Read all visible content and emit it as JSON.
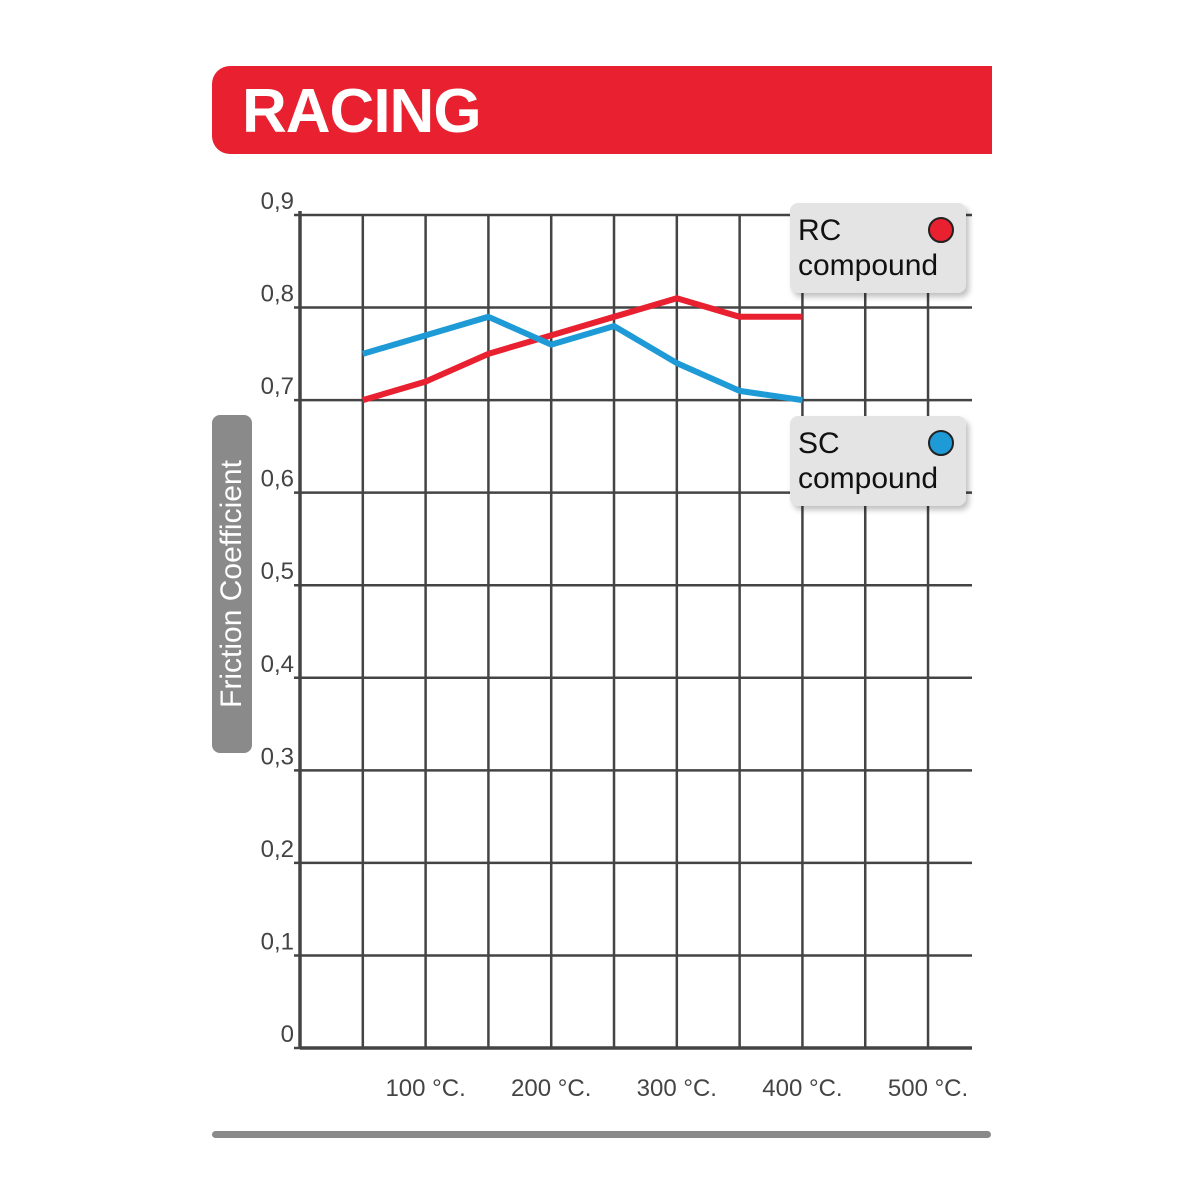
{
  "chart_data": {
    "type": "line",
    "title": "RACING",
    "y_label": "Friction Coefficient",
    "x": [
      50,
      100,
      150,
      200,
      250,
      300,
      350,
      400
    ],
    "series": [
      {
        "name": "RC compound",
        "color": "#e8202f",
        "values": [
          0.7,
          0.72,
          0.75,
          0.77,
          0.79,
          0.81,
          0.79,
          0.79
        ]
      },
      {
        "name": "SC compound",
        "color": "#1e9ad6",
        "values": [
          0.75,
          0.77,
          0.79,
          0.76,
          0.78,
          0.74,
          0.71,
          0.7
        ]
      }
    ],
    "xlim": [
      0,
      535
    ],
    "xticks": [
      {
        "value": 100,
        "label": "100 °C."
      },
      {
        "value": 200,
        "label": "200 °C."
      },
      {
        "value": 300,
        "label": "300 °C."
      },
      {
        "value": 400,
        "label": "400 °C."
      },
      {
        "value": 500,
        "label": "500 °C."
      }
    ],
    "x_minor_grid": [
      50,
      150,
      250,
      350,
      450
    ],
    "ylim": [
      0,
      0.9
    ],
    "yticks": [
      {
        "value": 0,
        "label": "0"
      },
      {
        "value": 0.1,
        "label": "0,1"
      },
      {
        "value": 0.2,
        "label": "0,2"
      },
      {
        "value": 0.3,
        "label": "0,3"
      },
      {
        "value": 0.4,
        "label": "0,4"
      },
      {
        "value": 0.5,
        "label": "0,5"
      },
      {
        "value": 0.6,
        "label": "0,6"
      },
      {
        "value": 0.7,
        "label": "0,7"
      },
      {
        "value": 0.8,
        "label": "0,8"
      },
      {
        "value": 0.9,
        "label": "0,9"
      }
    ],
    "grid": true
  }
}
